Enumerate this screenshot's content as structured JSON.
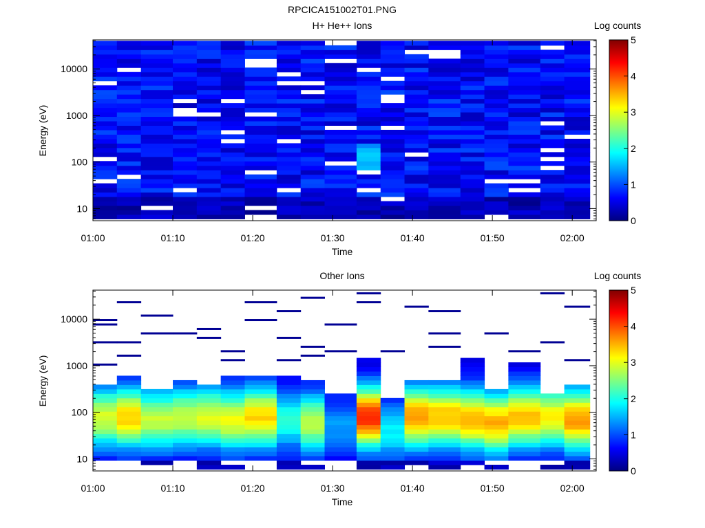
{
  "figure": {
    "title": "RPCICA151002T01.PNG"
  },
  "colorbar": {
    "label": "Log counts",
    "ticks": [
      0,
      1,
      2,
      3,
      4,
      5
    ],
    "colors": [
      "#000080",
      "#0000ff",
      "#0080ff",
      "#00ffff",
      "#80ff80",
      "#ffff00",
      "#ff8000",
      "#ff0000",
      "#800000"
    ]
  },
  "chart_data": [
    {
      "type": "heatmap",
      "title": "H+ He++ Ions",
      "xlabel": "Time",
      "ylabel": "Energy (eV)",
      "yscale": "log",
      "ylim": [
        5.5,
        42000
      ],
      "xlim": [
        "01:00",
        "02:03"
      ],
      "xticks": [
        "01:00",
        "01:10",
        "01:20",
        "01:30",
        "01:40",
        "01:50",
        "02:00"
      ],
      "yticks": [
        "10",
        "100",
        "1000",
        "10000"
      ],
      "colorbar_label": "Log counts",
      "colorbar_range": [
        0,
        5
      ],
      "time_bins": [
        "01:00",
        "01:03",
        "01:06",
        "01:10",
        "01:13",
        "01:16",
        "01:19",
        "01:23",
        "01:26",
        "01:29",
        "01:33",
        "01:36",
        "01:39",
        "01:42",
        "01:46",
        "01:49",
        "01:52",
        "01:56",
        "01:59"
      ],
      "energy_range_eV": [
        6,
        40000
      ],
      "value_range": [
        0,
        1.8
      ],
      "note_values": "mostly 0.3-1.0 log counts across all energies, peak ~1.7 near 01:33 at 100-150 eV"
    },
    {
      "type": "heatmap",
      "title": "Other Ions",
      "xlabel": "Time",
      "ylabel": "Energy (eV)",
      "yscale": "log",
      "ylim": [
        5.5,
        42000
      ],
      "xlim": [
        "01:00",
        "02:03"
      ],
      "xticks": [
        "01:00",
        "01:10",
        "01:20",
        "01:30",
        "01:40",
        "01:50",
        "02:00"
      ],
      "yticks": [
        "10",
        "100",
        "1000",
        "10000"
      ],
      "colorbar_label": "Log counts",
      "colorbar_range": [
        0,
        5
      ],
      "time_bins": [
        "01:00",
        "01:03",
        "01:06",
        "01:10",
        "01:13",
        "01:16",
        "01:19",
        "01:23",
        "01:26",
        "01:29",
        "01:33",
        "01:36",
        "01:39",
        "01:42",
        "01:46",
        "01:49",
        "01:52",
        "01:56",
        "01:59"
      ],
      "peak_energy_eV": [
        80,
        80,
        70,
        80,
        80,
        70,
        80,
        70,
        60,
        50,
        80,
        40,
        80,
        80,
        70,
        60,
        80,
        80,
        70
      ],
      "peak_value": [
        2.6,
        3.0,
        2.5,
        2.5,
        2.6,
        2.7,
        3.0,
        1.7,
        2.4,
        1.0,
        3.8,
        1.5,
        3.3,
        3.1,
        3.2,
        3.2,
        3.1,
        2.8,
        3.3
      ],
      "upper_edge_eV": [
        420,
        580,
        350,
        450,
        420,
        560,
        650,
        600,
        440,
        250,
        1400,
        200,
        520,
        460,
        1350,
        340,
        1300,
        270,
        430
      ],
      "sparse_high_energy_lines_eV": [
        [
          1100,
          2900,
          7000,
          9000
        ],
        [
          1800,
          3300,
          24000
        ],
        [
          5500,
          12000
        ],
        [
          4800
        ],
        [
          4200,
          6000
        ],
        [
          1200,
          2000
        ],
        [
          8800,
          23000
        ],
        [
          1300,
          4200,
          14000
        ],
        [
          1800,
          2600,
          31000
        ],
        [
          1900,
          7000
        ],
        [
          21000,
          38000
        ],
        [
          2200
        ],
        [
          18000
        ],
        [
          2600,
          5000,
          14000
        ],
        [
          1300
        ],
        [
          4500
        ],
        [
          2000
        ],
        [
          3500,
          38000
        ],
        [
          1300,
          18000
        ]
      ]
    }
  ]
}
